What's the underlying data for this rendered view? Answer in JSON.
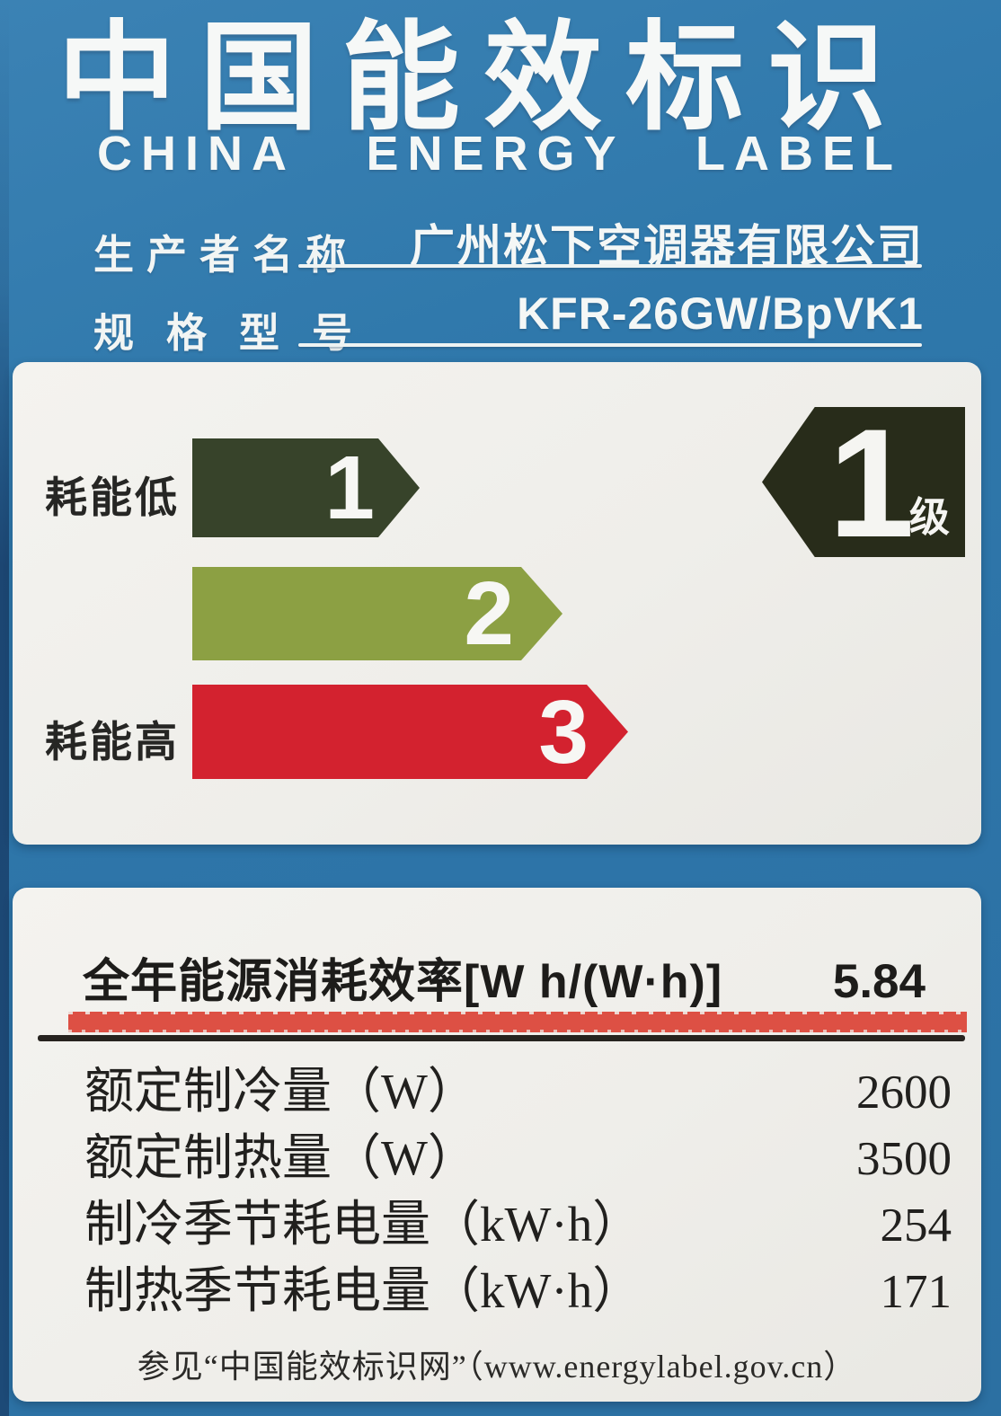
{
  "header": {
    "title_cn": "中国能效标识",
    "title_en_words": [
      "CHINA",
      "ENERGY",
      "LABEL"
    ],
    "producer_label": "生产者名称",
    "producer_value": "广州松下空调器有限公司",
    "model_label": "规格型号",
    "model_value": "KFR-26GW/BpVK1"
  },
  "scale": {
    "low_label": "耗能低",
    "high_label": "耗能高",
    "tiers": [
      {
        "value": "1",
        "color": "#37432a"
      },
      {
        "value": "2",
        "color": "#8ca043"
      },
      {
        "value": "3",
        "color": "#d3222f"
      }
    ],
    "grade": {
      "number": "1",
      "suffix": "级",
      "color": "#282c1a"
    }
  },
  "table": {
    "efficiency_row": {
      "label": "全年能源消耗效率[W h/(W·h)]",
      "value": "5.84"
    },
    "rows": [
      {
        "label": "额定制冷量（W）",
        "value": "2600"
      },
      {
        "label": "额定制热量（W）",
        "value": "3500"
      },
      {
        "label": "制冷季节耗电量（kW·h）",
        "value": "254"
      },
      {
        "label": "制热季节耗电量（kW·h）",
        "value": "171"
      }
    ],
    "footer": "参见“中国能效标识网”（www.energylabel.gov.cn）"
  },
  "colors": {
    "background_blue": "#2e78ac",
    "edge_navy": "#1d4a77",
    "panel_white": "#efeeea",
    "tier1_dark_green": "#37432a",
    "tier2_olive_green": "#8ca043",
    "tier3_red": "#d3222f",
    "grade_arrow_dark": "#282c1a",
    "highlight_red_band": "#dd5044",
    "text_black": "#1d1c1a",
    "text_white": "#f5f5f2"
  }
}
